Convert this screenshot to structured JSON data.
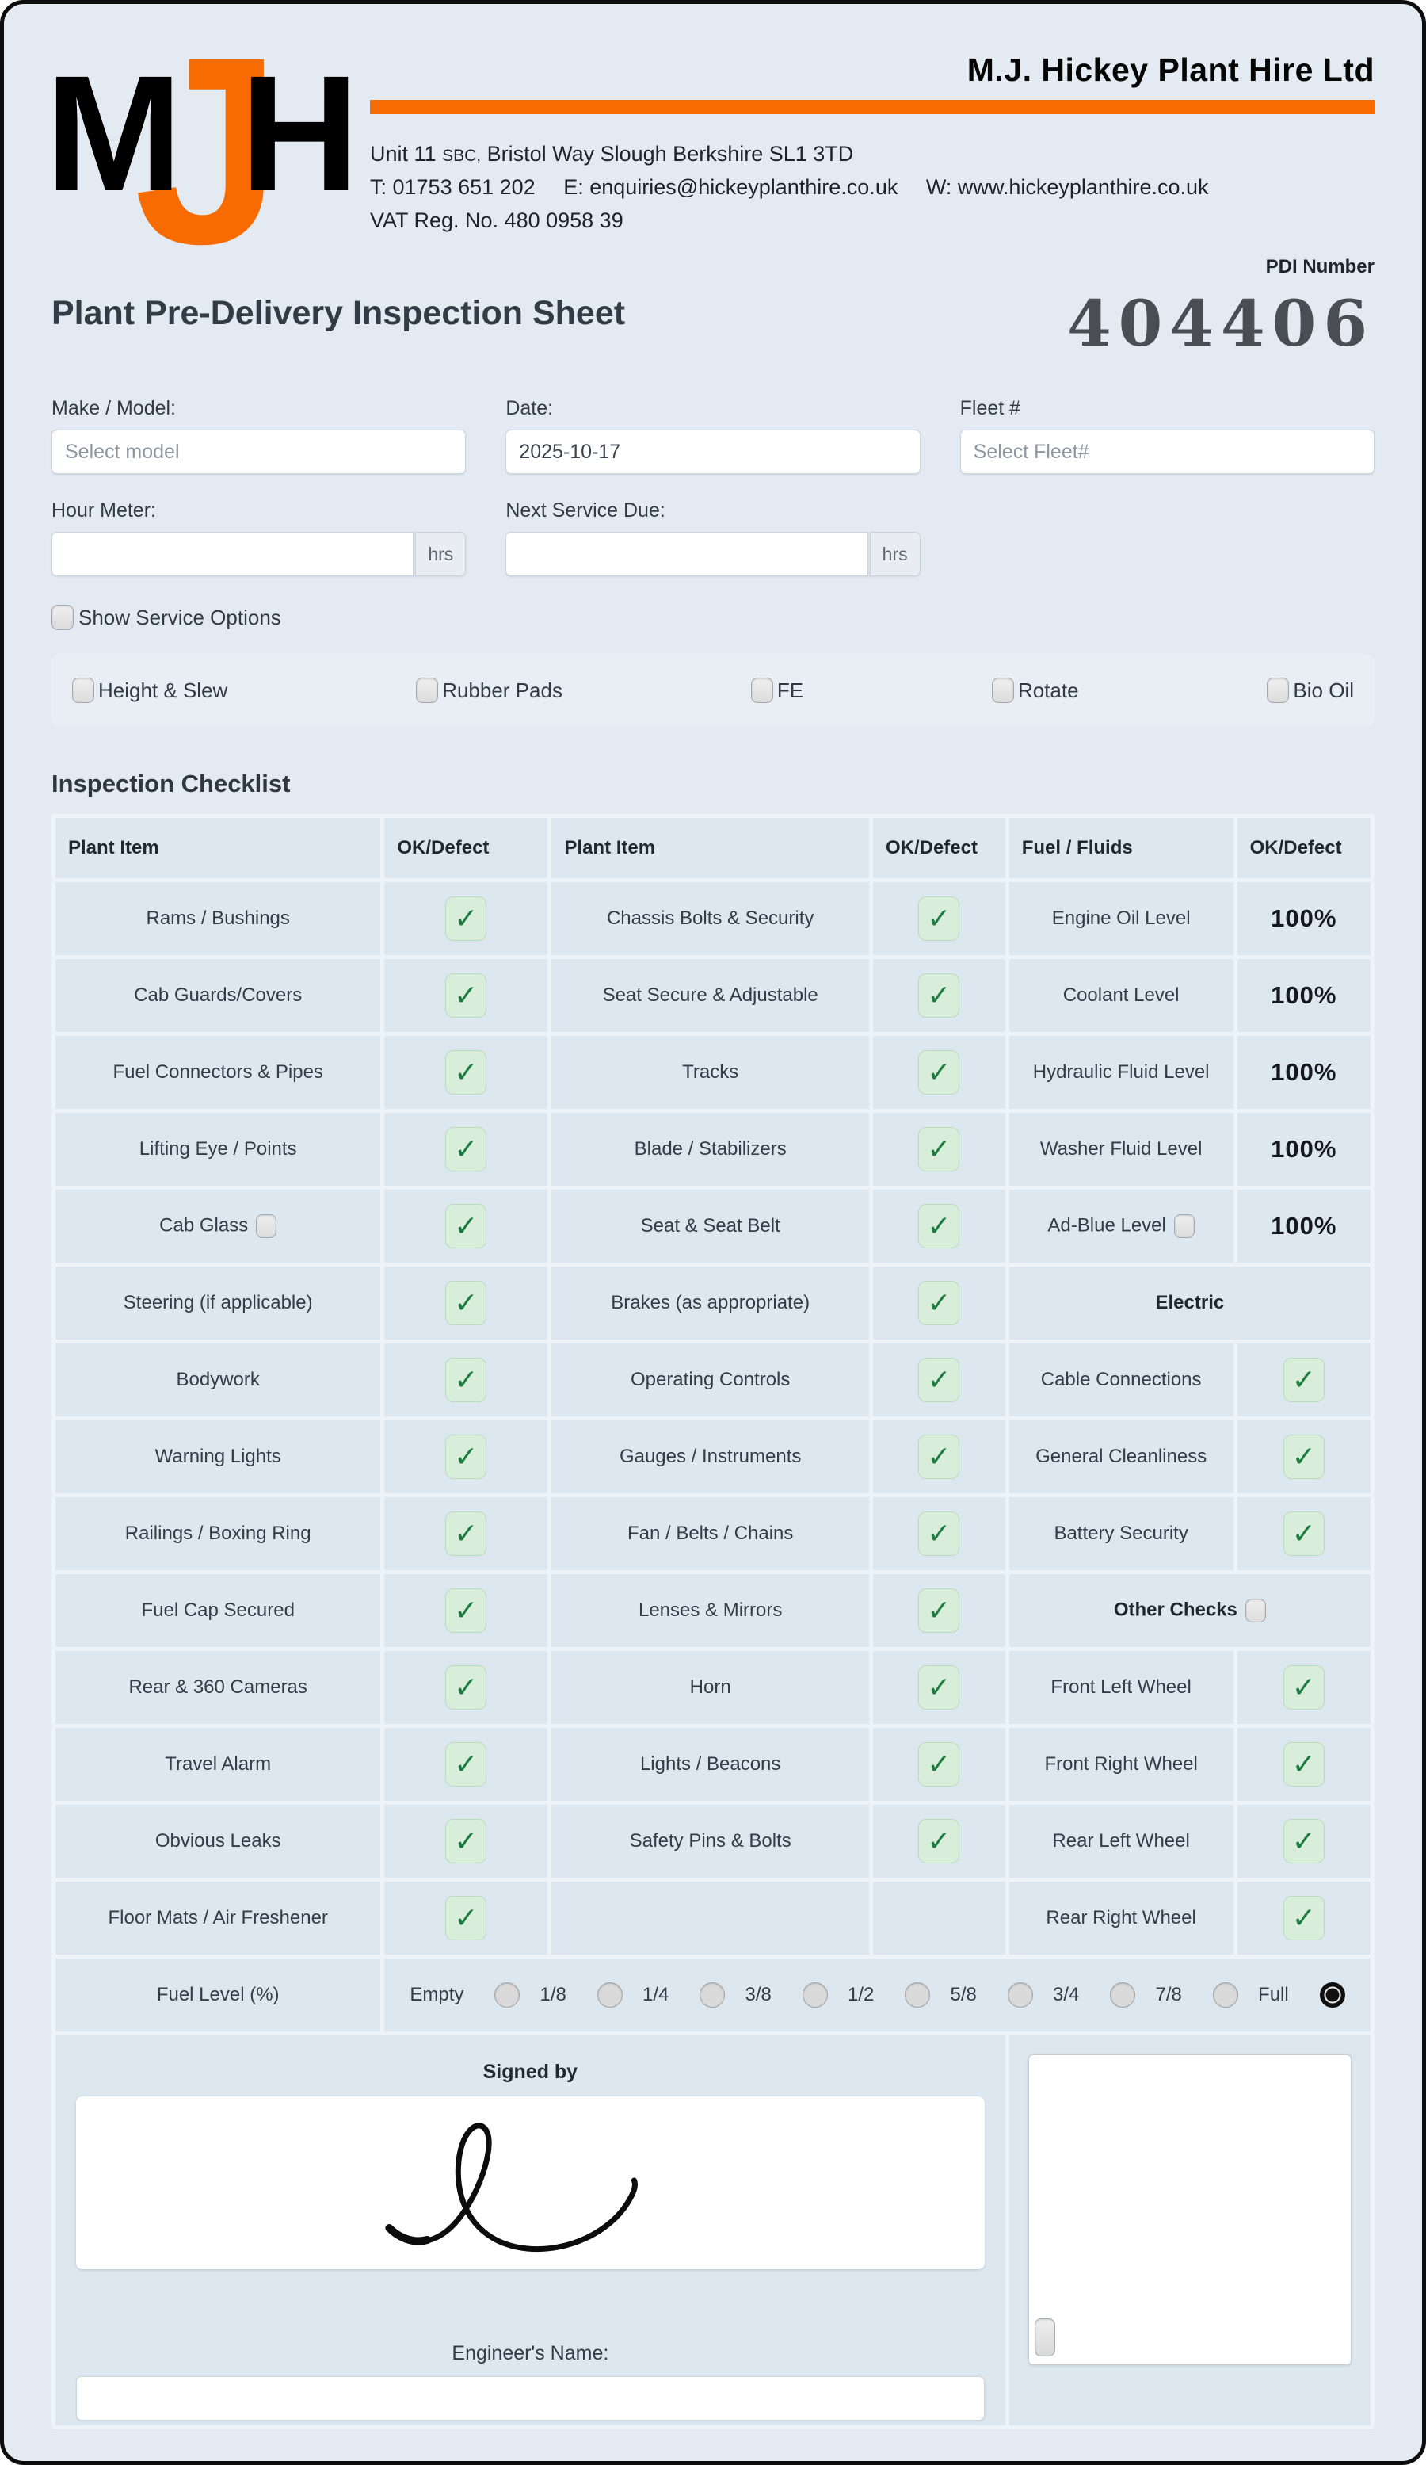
{
  "header": {
    "logo_m": "M",
    "logo_j": "J",
    "logo_h": "H",
    "company_name": "M.J. Hickey Plant Hire Ltd",
    "address_prefix": "Unit 11",
    "address_small": "SBC,",
    "address_suffix": "Bristol Way Slough Berkshire SL1 3TD",
    "contact_phone": "T: 01753 651 202",
    "contact_email": "E: enquiries@hickeyplanthire.co.uk",
    "contact_web": "W: www.hickeyplanthire.co.uk",
    "vat_line": "VAT Reg. No. 480 0958 39",
    "orange_color": "#f76b00"
  },
  "pdi": {
    "label": "PDI Number",
    "number": "404406"
  },
  "page_title": "Plant Pre-Delivery Inspection Sheet",
  "form": {
    "make_model": {
      "label": "Make / Model:",
      "placeholder": "Select model",
      "value": ""
    },
    "date": {
      "label": "Date:",
      "value": "2025-10-17"
    },
    "fleet": {
      "label": "Fleet #",
      "placeholder": "Select Fleet#",
      "value": ""
    },
    "hour_meter": {
      "label": "Hour Meter:",
      "value": "",
      "suffix": "hrs"
    },
    "next_service": {
      "label": "Next Service Due:",
      "value": "",
      "suffix": "hrs"
    },
    "show_service_options": {
      "label": "Show Service Options",
      "checked": false
    },
    "service_options": [
      {
        "label": "Height & Slew",
        "checked": false
      },
      {
        "label": "Rubber Pads",
        "checked": false
      },
      {
        "label": "FE",
        "checked": false
      },
      {
        "label": "Rotate",
        "checked": false
      },
      {
        "label": "Bio Oil",
        "checked": false
      }
    ]
  },
  "checklist": {
    "heading": "Inspection Checklist",
    "check_glyph": "✓",
    "columns": [
      "Plant Item",
      "OK/Defect",
      "Plant Item",
      "OK/Defect",
      "Fuel / Fluids",
      "OK/Defect"
    ],
    "rows": [
      [
        {
          "text": "Rams / Bushings"
        },
        {
          "check": true
        },
        {
          "text": "Chassis Bolts & Security"
        },
        {
          "check": true
        },
        {
          "text": "Engine Oil Level"
        },
        {
          "value": "100%"
        }
      ],
      [
        {
          "text": "Cab Guards/Covers"
        },
        {
          "check": true
        },
        {
          "text": "Seat Secure & Adjustable"
        },
        {
          "check": true
        },
        {
          "text": "Coolant Level"
        },
        {
          "value": "100%"
        }
      ],
      [
        {
          "text": "Fuel Connectors & Pipes"
        },
        {
          "check": true
        },
        {
          "text": "Tracks"
        },
        {
          "check": true
        },
        {
          "text": "Hydraulic Fluid Level"
        },
        {
          "value": "100%"
        }
      ],
      [
        {
          "text": "Lifting Eye / Points"
        },
        {
          "check": true
        },
        {
          "text": "Blade / Stabilizers"
        },
        {
          "check": true
        },
        {
          "text": "Washer Fluid Level"
        },
        {
          "value": "100%"
        }
      ],
      [
        {
          "text": "Cab Glass",
          "checkbox": true
        },
        {
          "check": true
        },
        {
          "text": "Seat & Seat Belt"
        },
        {
          "check": true
        },
        {
          "text": "Ad-Blue Level",
          "checkbox": true
        },
        {
          "value": "100%"
        }
      ],
      [
        {
          "text": "Steering (if applicable)"
        },
        {
          "check": true
        },
        {
          "text": "Brakes (as appropriate)"
        },
        {
          "check": true
        },
        {
          "header": "Electric",
          "span": 2
        }
      ],
      [
        {
          "text": "Bodywork"
        },
        {
          "check": true
        },
        {
          "text": "Operating Controls"
        },
        {
          "check": true
        },
        {
          "text": "Cable Connections"
        },
        {
          "check": true
        }
      ],
      [
        {
          "text": "Warning Lights"
        },
        {
          "check": true
        },
        {
          "text": "Gauges / Instruments"
        },
        {
          "check": true
        },
        {
          "text": "General Cleanliness"
        },
        {
          "check": true
        }
      ],
      [
        {
          "text": "Railings / Boxing Ring"
        },
        {
          "check": true
        },
        {
          "text": "Fan / Belts / Chains"
        },
        {
          "check": true
        },
        {
          "text": "Battery Security"
        },
        {
          "check": true
        }
      ],
      [
        {
          "text": "Fuel Cap Secured"
        },
        {
          "check": true
        },
        {
          "text": "Lenses & Mirrors"
        },
        {
          "check": true
        },
        {
          "header": "Other Checks",
          "span": 2,
          "checkbox": true
        }
      ],
      [
        {
          "text": "Rear & 360 Cameras"
        },
        {
          "check": true
        },
        {
          "text": "Horn"
        },
        {
          "check": true
        },
        {
          "text": "Front Left Wheel"
        },
        {
          "check": true
        }
      ],
      [
        {
          "text": "Travel Alarm"
        },
        {
          "check": true
        },
        {
          "text": "Lights / Beacons"
        },
        {
          "check": true
        },
        {
          "text": "Front Right Wheel"
        },
        {
          "check": true
        }
      ],
      [
        {
          "text": "Obvious Leaks"
        },
        {
          "check": true
        },
        {
          "text": "Safety Pins & Bolts"
        },
        {
          "check": true
        },
        {
          "text": "Rear Left Wheel"
        },
        {
          "check": true
        }
      ],
      [
        {
          "text": "Floor Mats / Air Freshener"
        },
        {
          "check": true
        },
        {
          "empty": true
        },
        {
          "empty": true
        },
        {
          "text": "Rear Right Wheel"
        },
        {
          "check": true
        }
      ],
      [
        {
          "text": "Fuel Level (%)"
        },
        {
          "fuel": true,
          "span": 5
        }
      ]
    ]
  },
  "fuel_level": {
    "options": [
      "Empty",
      "1/8",
      "1/4",
      "3/8",
      "1/2",
      "5/8",
      "3/4",
      "7/8",
      "Full"
    ],
    "selected": "Full"
  },
  "signature": {
    "signed_by_label": "Signed by",
    "engineer_label": "Engineer's Name:",
    "engineer_value": ""
  },
  "notes": {
    "value": "",
    "checkbox_checked": false
  }
}
